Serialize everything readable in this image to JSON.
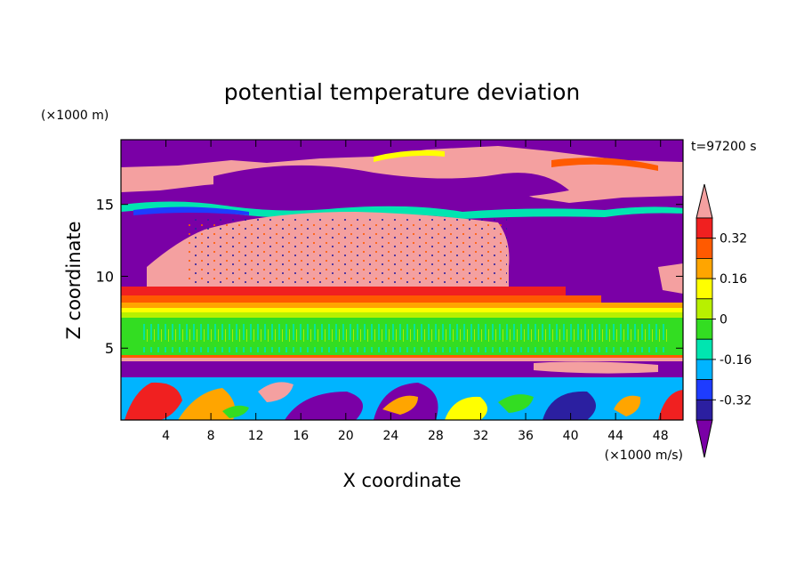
{
  "chart_data": {
    "type": "heatmap",
    "title": "potential temperature deviation",
    "xlabel": "X coordinate",
    "ylabel": "Z coordinate",
    "x_unit": "(×1000 m/s)",
    "y_unit": "(×1000 m)",
    "time_label": "t=97200 s",
    "xlim": [
      0,
      50
    ],
    "ylim": [
      0,
      19.5
    ],
    "x_ticks": [
      4,
      8,
      12,
      16,
      20,
      24,
      28,
      32,
      36,
      40,
      44,
      48
    ],
    "y_ticks": [
      5,
      10,
      15
    ],
    "colorbar": {
      "levels": [
        -0.4,
        -0.32,
        -0.24,
        -0.16,
        -0.08,
        0,
        0.08,
        0.16,
        0.24,
        0.32,
        0.4
      ],
      "colors": [
        "#7a00a6",
        "#2b1fa0",
        "#1e3cff",
        "#00b4ff",
        "#00e5b0",
        "#33dd22",
        "#b8f000",
        "#ffff00",
        "#ffa500",
        "#ff5a00",
        "#f02020",
        "#f4a0a0"
      ],
      "labels": [
        "0.32",
        "0.16",
        "0",
        "-0.16",
        "-0.32"
      ],
      "label_values": [
        0.32,
        0.16,
        0,
        -0.16,
        -0.32
      ],
      "extend": "both"
    },
    "layers": [
      {
        "z": [
          16.8,
          19.5
        ],
        "description_value": -0.4
      },
      {
        "z": [
          15.0,
          16.8
        ],
        "description_value": 0.4
      },
      {
        "z": [
          9.5,
          15.0
        ],
        "description_value": 0.4
      },
      {
        "z": [
          8.9,
          9.5
        ],
        "description_value": 0.32
      },
      {
        "z": [
          8.3,
          8.9
        ],
        "description_value": 0.16
      },
      {
        "z": [
          5.0,
          7.8
        ],
        "description_value": 0.0
      },
      {
        "z": [
          4.5,
          5.0
        ],
        "description_value": 0.32
      },
      {
        "z": [
          3.2,
          4.3
        ],
        "description_value": -0.4
      },
      {
        "z": [
          0,
          3.2
        ],
        "description_value": -0.16
      }
    ]
  }
}
